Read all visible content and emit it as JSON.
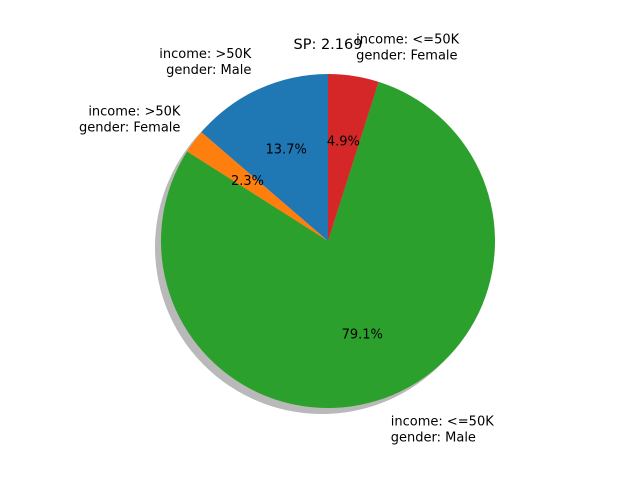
{
  "chart_data": {
    "type": "pie",
    "title": "SP: 2.169",
    "shadow": true,
    "start_angle": 90,
    "direction": "counterclockwise",
    "slices": [
      {
        "label_lines": [
          "income: >50K",
          "gender: Male"
        ],
        "percent_label": "13.7%",
        "value": 13.7,
        "color": "#1f77b4"
      },
      {
        "label_lines": [
          "income: >50K",
          "gender: Female"
        ],
        "percent_label": "2.3%",
        "value": 2.3,
        "color": "#ff7f0e"
      },
      {
        "label_lines": [
          "income: <=50K",
          "gender: Male"
        ],
        "percent_label": "79.1%",
        "value": 79.1,
        "color": "#2ca02c"
      },
      {
        "label_lines": [
          "income: <=50K",
          "gender: Female"
        ],
        "percent_label": "4.9%",
        "value": 4.9,
        "color": "#d62728"
      }
    ],
    "shadow_color": "#808080"
  }
}
